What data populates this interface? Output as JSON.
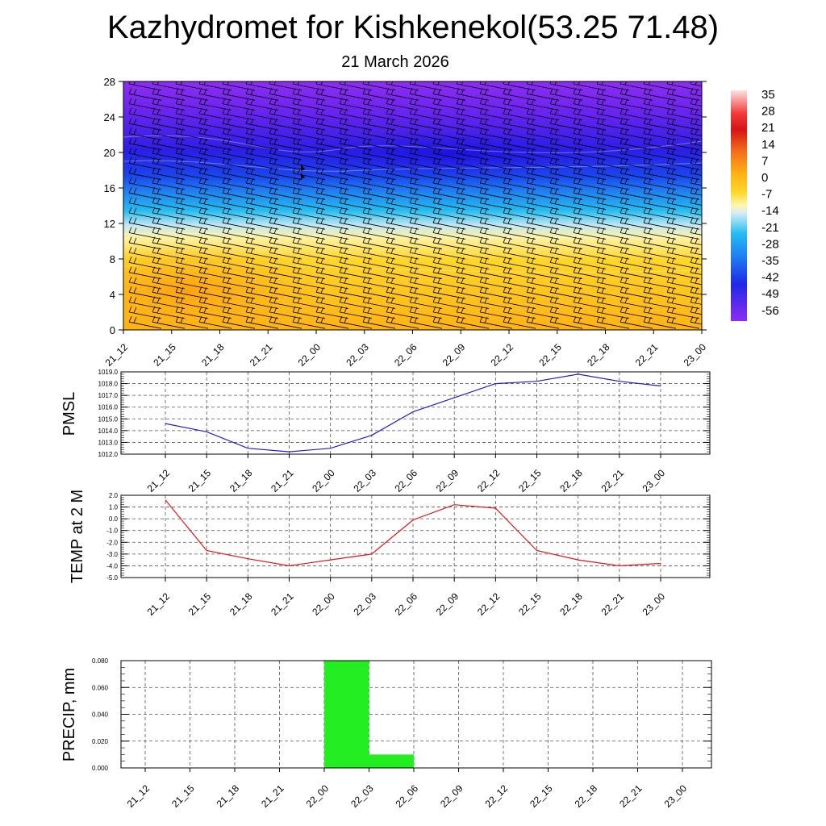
{
  "title": "Kazhydromet for Kishkenekol(53.25 71.48)",
  "date": "21 March 2026",
  "time_labels": [
    "21_12",
    "21_15",
    "21_18",
    "21_21",
    "22_00",
    "22_03",
    "22_06",
    "22_09",
    "22_12",
    "22_15",
    "22_18",
    "22_21",
    "23_00"
  ],
  "colors": {
    "pmsl_line": "#1f1fcc",
    "temp_line": "#e01818",
    "precip_bar": "#22ee22",
    "grid": "#555555"
  },
  "chart_data": [
    {
      "type": "heatmap",
      "name": "temperature-cross-section",
      "xlabels": [
        "21_12",
        "21_15",
        "21_18",
        "21_21",
        "22_00",
        "22_03",
        "22_06",
        "22_09",
        "22_12",
        "22_15",
        "22_18",
        "22_21",
        "23_00"
      ],
      "y_ticks": [
        0,
        4,
        8,
        12,
        16,
        20,
        24,
        28
      ],
      "ylim": [
        0,
        28
      ],
      "colorbar_labels": [
        "35",
        "28",
        "21",
        "14",
        "7",
        "0",
        "-7",
        "-14",
        "-21",
        "-28",
        "-35",
        "-42",
        "-49",
        "-56"
      ],
      "overlay": "wind barbs"
    },
    {
      "type": "line",
      "name": "pmsl",
      "ylabel": "PMSL",
      "x": [
        "21_12",
        "21_15",
        "21_18",
        "21_21",
        "22_00",
        "22_03",
        "22_06",
        "22_09",
        "22_12",
        "22_15",
        "22_18",
        "22_21",
        "23_00"
      ],
      "values": [
        1014.6,
        1013.9,
        1012.5,
        1012.2,
        1012.5,
        1013.6,
        1015.6,
        1016.8,
        1018.0,
        1018.2,
        1018.8,
        1018.2,
        1017.8
      ],
      "ylim": [
        1012.0,
        1019.0
      ],
      "y_ticks": [
        "1012.0",
        "1013.0",
        "1014.0",
        "1015.0",
        "1016.0",
        "1017.0",
        "1018.0",
        "1019.0"
      ]
    },
    {
      "type": "line",
      "name": "temp-2m",
      "ylabel": "TEMP at 2 M",
      "x": [
        "21_12",
        "21_15",
        "21_18",
        "21_21",
        "22_00",
        "22_03",
        "22_06",
        "22_09",
        "22_12",
        "22_15",
        "22_18",
        "22_21",
        "23_00"
      ],
      "values": [
        1.6,
        -2.7,
        -3.4,
        -4.0,
        -3.5,
        -3.0,
        -0.1,
        1.2,
        0.9,
        -2.7,
        -3.5,
        -4.0,
        -3.8
      ],
      "ylim": [
        -5.0,
        2.0
      ],
      "y_ticks": [
        "-5.0",
        "-4.0",
        "-3.0",
        "-2.0",
        "-1.0",
        "0.0",
        "1.0",
        "2.0"
      ]
    },
    {
      "type": "bar",
      "name": "precip",
      "ylabel": "PRECIP, mm",
      "categories": [
        "21_12",
        "21_15",
        "21_18",
        "21_21",
        "22_00",
        "22_03",
        "22_06",
        "22_09",
        "22_12",
        "22_15",
        "22_18",
        "22_21",
        "23_00"
      ],
      "values": [
        0,
        0,
        0,
        0,
        0,
        0.08,
        0.01,
        0,
        0,
        0,
        0,
        0,
        0
      ],
      "ylim": [
        0,
        0.08
      ],
      "y_ticks": [
        "0.000",
        "0.020",
        "0.040",
        "0.060",
        "0.080"
      ]
    }
  ]
}
